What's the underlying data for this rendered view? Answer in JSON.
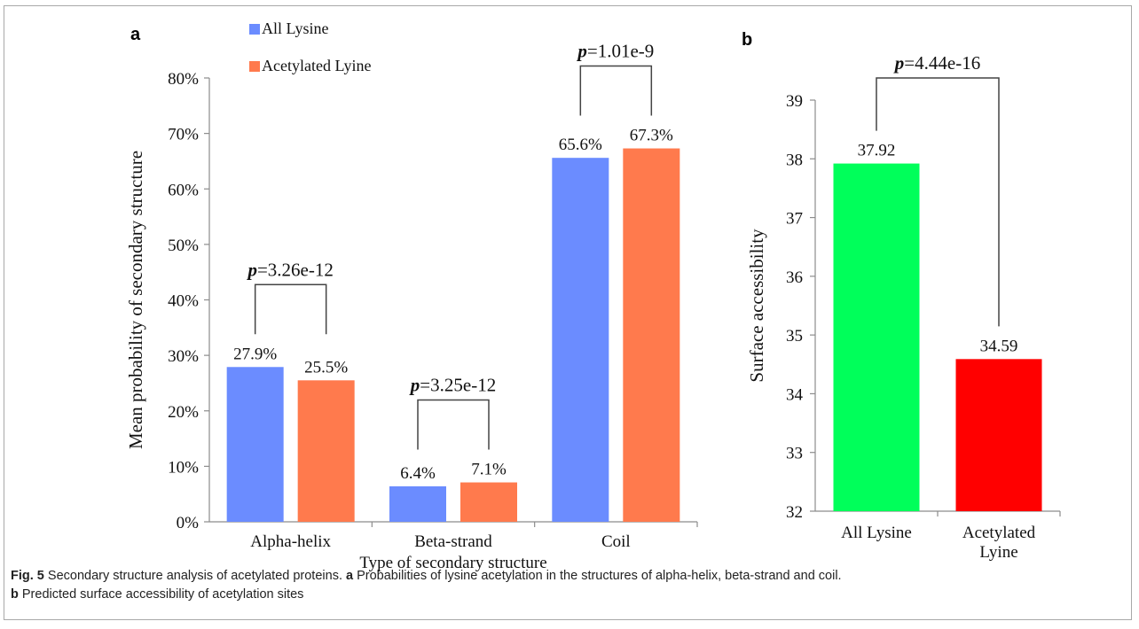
{
  "colors": {
    "all_lysine": "#6b8cff",
    "acetylated": "#ff7a4d",
    "b_all_lysine": "#00ff5a",
    "b_acetylated": "#ff0000",
    "axis": "#8c8c8c",
    "bracket": "#444444",
    "text": "#111111"
  },
  "chart_data": [
    {
      "panel": "a",
      "type": "bar",
      "xlabel": "Type of secondary structure",
      "ylabel": "Mean probability  of secondary structure",
      "ylim": [
        0,
        80
      ],
      "yticks": [
        0,
        10,
        20,
        30,
        40,
        50,
        60,
        70,
        80
      ],
      "ytick_labels": [
        "0%",
        "10%",
        "20%",
        "30%",
        "40%",
        "50%",
        "60%",
        "70%",
        "80%"
      ],
      "categories": [
        "Alpha-helix",
        "Beta-strand",
        "Coil"
      ],
      "series": [
        {
          "name": "All Lysine",
          "values": [
            27.9,
            6.4,
            65.6
          ],
          "labels": [
            "27.9%",
            "6.4%",
            "65.6%"
          ]
        },
        {
          "name": "Acetylated Lyine",
          "values": [
            25.5,
            7.1,
            67.3
          ],
          "labels": [
            "25.5%",
            "7.1%",
            "67.3%"
          ]
        }
      ],
      "legend": "top-left",
      "grid": false,
      "p_values": [
        {
          "category": "Alpha-helix",
          "p_label": "p",
          "value": "=3.26e-12"
        },
        {
          "category": "Beta-strand",
          "p_label": "p",
          "value": "=3.25e-12"
        },
        {
          "category": "Coil",
          "p_label": "p",
          "value": "=1.01e-9"
        }
      ]
    },
    {
      "panel": "b",
      "type": "bar",
      "xlabel": "",
      "ylabel": "Surface accessibility",
      "ylim": [
        32,
        39
      ],
      "yticks": [
        32,
        33,
        34,
        35,
        36,
        37,
        38,
        39
      ],
      "ytick_labels": [
        "32",
        "33",
        "34",
        "35",
        "36",
        "37",
        "38",
        "39"
      ],
      "categories": [
        [
          "All Lysine"
        ],
        [
          "Acetylated",
          "Lyine"
        ]
      ],
      "values": [
        37.92,
        34.59
      ],
      "labels": [
        "37.92",
        "34.59"
      ],
      "grid": false,
      "p_value": {
        "p_label": "p",
        "value": "=4.44e-16"
      }
    }
  ],
  "caption": {
    "fig_label": "Fig. 5",
    "text1": "  Secondary structure analysis of acetylated proteins. ",
    "a_label": "a",
    "text2": " Probabilities of lysine acetylation in the structures of alpha-helix, beta-strand and coil.",
    "b_label": "b",
    "text3": " Predicted surface accessibility of acetylation sites"
  }
}
